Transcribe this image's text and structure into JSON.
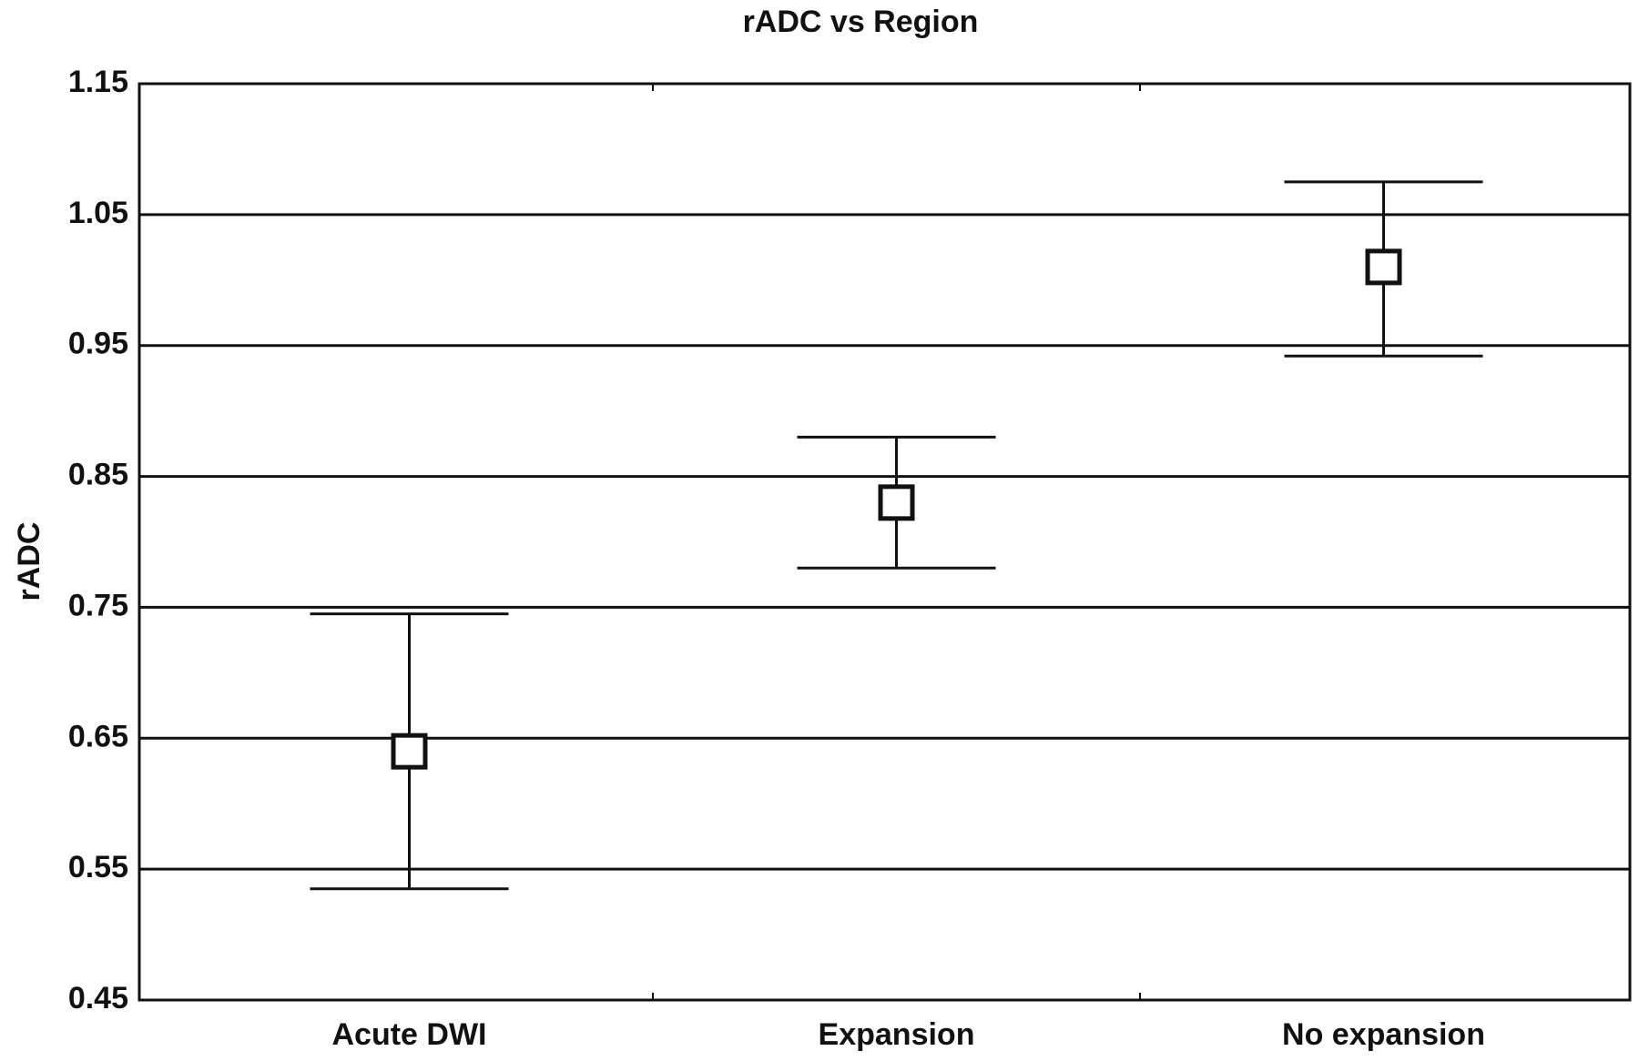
{
  "chart_data": {
    "type": "errorbar",
    "title": "rADC vs Region",
    "ylabel": "rADC",
    "categories": [
      "Acute DWI",
      "Expansion",
      "No expansion"
    ],
    "values": [
      0.64,
      0.83,
      1.01
    ],
    "upper": [
      0.745,
      0.88,
      1.075
    ],
    "lower": [
      0.535,
      0.78,
      0.942
    ],
    "color": "#111111",
    "ylim": [
      0.45,
      1.15
    ],
    "yticks": [
      0.45,
      0.55,
      0.65,
      0.75,
      0.85,
      0.95,
      1.05,
      1.15
    ],
    "grid": true
  }
}
